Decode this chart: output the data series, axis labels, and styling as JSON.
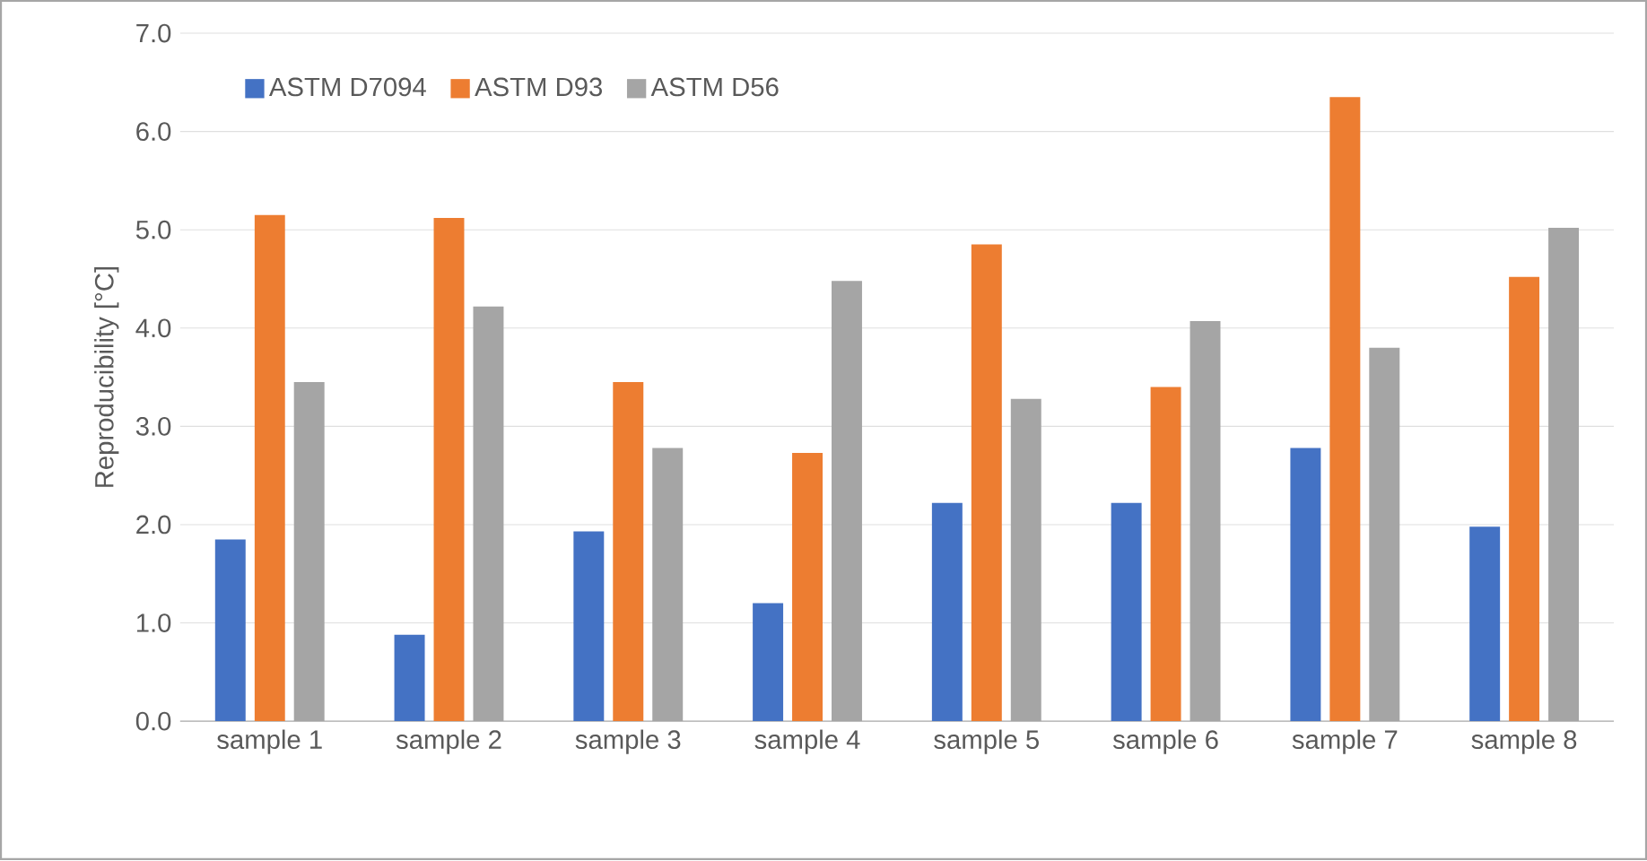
{
  "chart_data": {
    "type": "bar",
    "ylabel": "Reproducibility [°C]",
    "categories": [
      "sample 1",
      "sample 2",
      "sample 3",
      "sample 4",
      "sample 5",
      "sample 6",
      "sample 7",
      "sample 8"
    ],
    "series": [
      {
        "name": "ASTM D7094",
        "color": "#4472c4",
        "values": [
          1.85,
          0.88,
          1.93,
          1.2,
          2.22,
          2.22,
          2.78,
          1.98
        ]
      },
      {
        "name": "ASTM D93",
        "color": "#ed7d31",
        "values": [
          5.15,
          5.12,
          3.45,
          2.73,
          4.85,
          3.4,
          6.35,
          4.52
        ]
      },
      {
        "name": "ASTM D56",
        "color": "#a5a5a5",
        "values": [
          3.45,
          4.22,
          2.78,
          4.48,
          3.28,
          4.07,
          3.8,
          5.02
        ]
      }
    ],
    "ylim": [
      0,
      7
    ],
    "yticks": [
      {
        "value": 0,
        "label": "0.0"
      },
      {
        "value": 1,
        "label": "1.0"
      },
      {
        "value": 2,
        "label": "2.0"
      },
      {
        "value": 3,
        "label": "3.0"
      },
      {
        "value": 4,
        "label": "4.0"
      },
      {
        "value": 5,
        "label": "5.0"
      },
      {
        "value": 6,
        "label": "6.0"
      },
      {
        "value": 7,
        "label": "7.0"
      }
    ],
    "grid": "y",
    "legend": "top left"
  }
}
